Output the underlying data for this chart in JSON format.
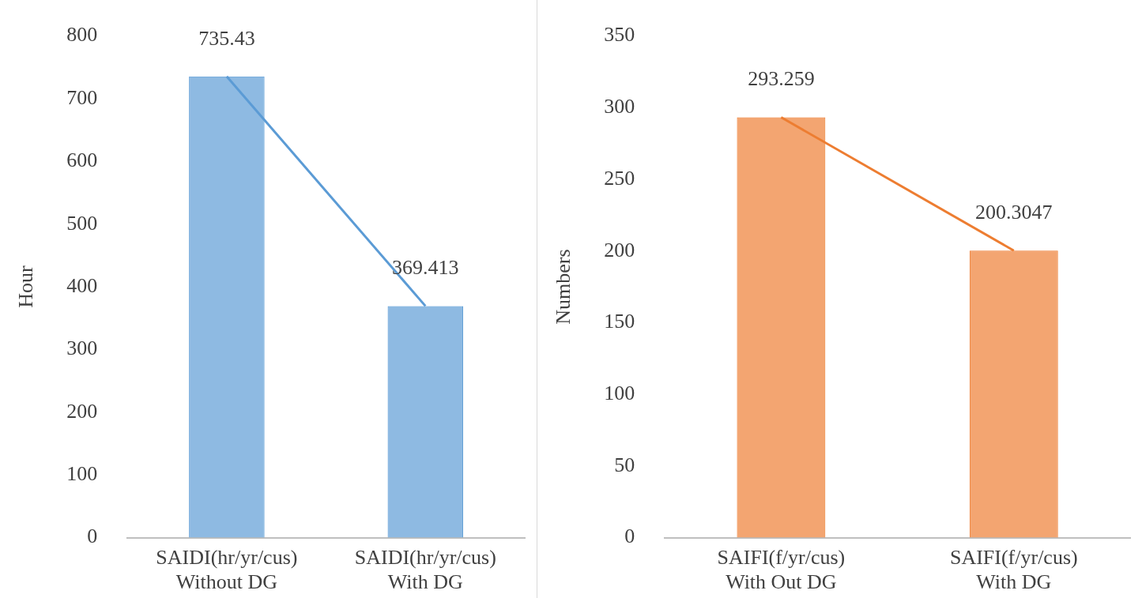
{
  "chart_data": [
    {
      "type": "bar",
      "categories": [
        "SAIDI(hr/yr/cus) Without DG",
        "SAIDI(hr/yr/cus) With DG"
      ],
      "ylabel": "Hour",
      "ylim": [
        0,
        800
      ],
      "yticks": [
        0,
        100,
        200,
        300,
        400,
        500,
        600,
        700,
        800
      ],
      "grid": false,
      "legend": false,
      "series": [
        {
          "color": "#5b9bd5",
          "values": [
            735.43,
            369.413
          ],
          "value_labels": [
            "735.43",
            "369.413"
          ]
        },
        {
          "type": "line",
          "color": "#5b9bd5",
          "marker": "none",
          "values": [
            735.43,
            369.413
          ]
        }
      ]
    },
    {
      "type": "bar",
      "categories": [
        "SAIFI(f/yr/cus) With Out DG",
        "SAIFI(f/yr/cus) With DG"
      ],
      "ylabel": "Numbers",
      "ylim": [
        0,
        350
      ],
      "yticks": [
        0,
        50,
        100,
        150,
        200,
        250,
        300,
        350
      ],
      "grid": false,
      "legend": false,
      "series": [
        {
          "color": "#ed7d31",
          "values": [
            293.259,
            200.3047
          ],
          "value_labels": [
            "293.259",
            "200.3047"
          ]
        },
        {
          "type": "line",
          "color": "#ed7d31",
          "marker": "none",
          "values": [
            293.259,
            200.3047
          ]
        }
      ]
    }
  ]
}
